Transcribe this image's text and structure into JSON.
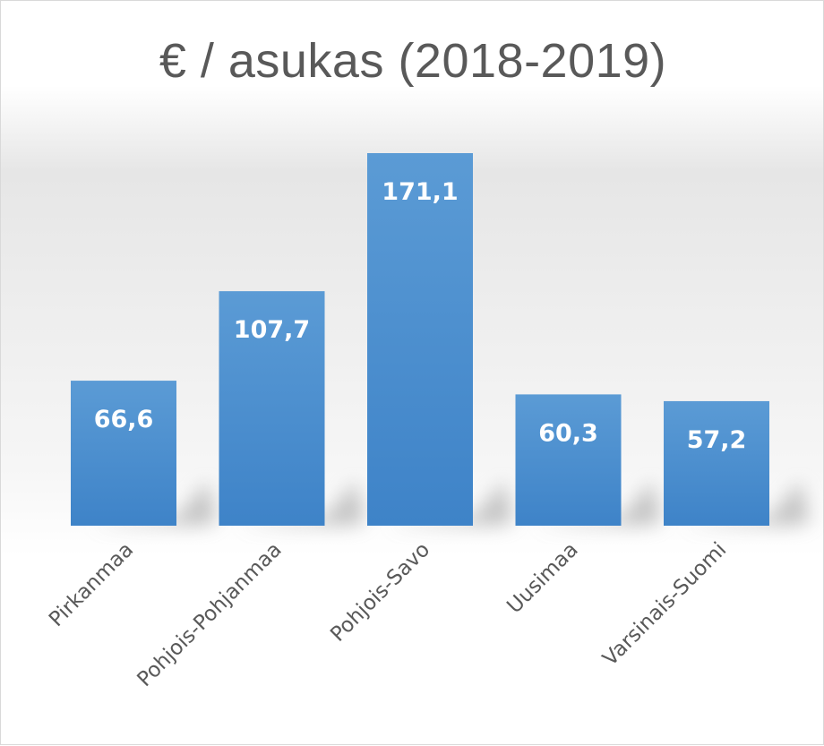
{
  "chart_data": {
    "type": "bar",
    "title": "€ / asukas (2018-2019)",
    "categories": [
      "Pirkanmaa",
      "Pohjois-Pohjanmaa",
      "Pohjois-Savo",
      "Uusimaa",
      "Varsinais-Suomi"
    ],
    "values": [
      66.6,
      107.7,
      171.1,
      60.3,
      57.2
    ],
    "data_labels": [
      "66,6",
      "107,7",
      "171,1",
      "60,3",
      "57,2"
    ],
    "ylim": [
      0,
      171.1
    ],
    "grid": false,
    "legend": "none",
    "bar_color_top": "#5b9bd5",
    "bar_color_bottom": "#3e83c8",
    "label_color": "#595959"
  }
}
